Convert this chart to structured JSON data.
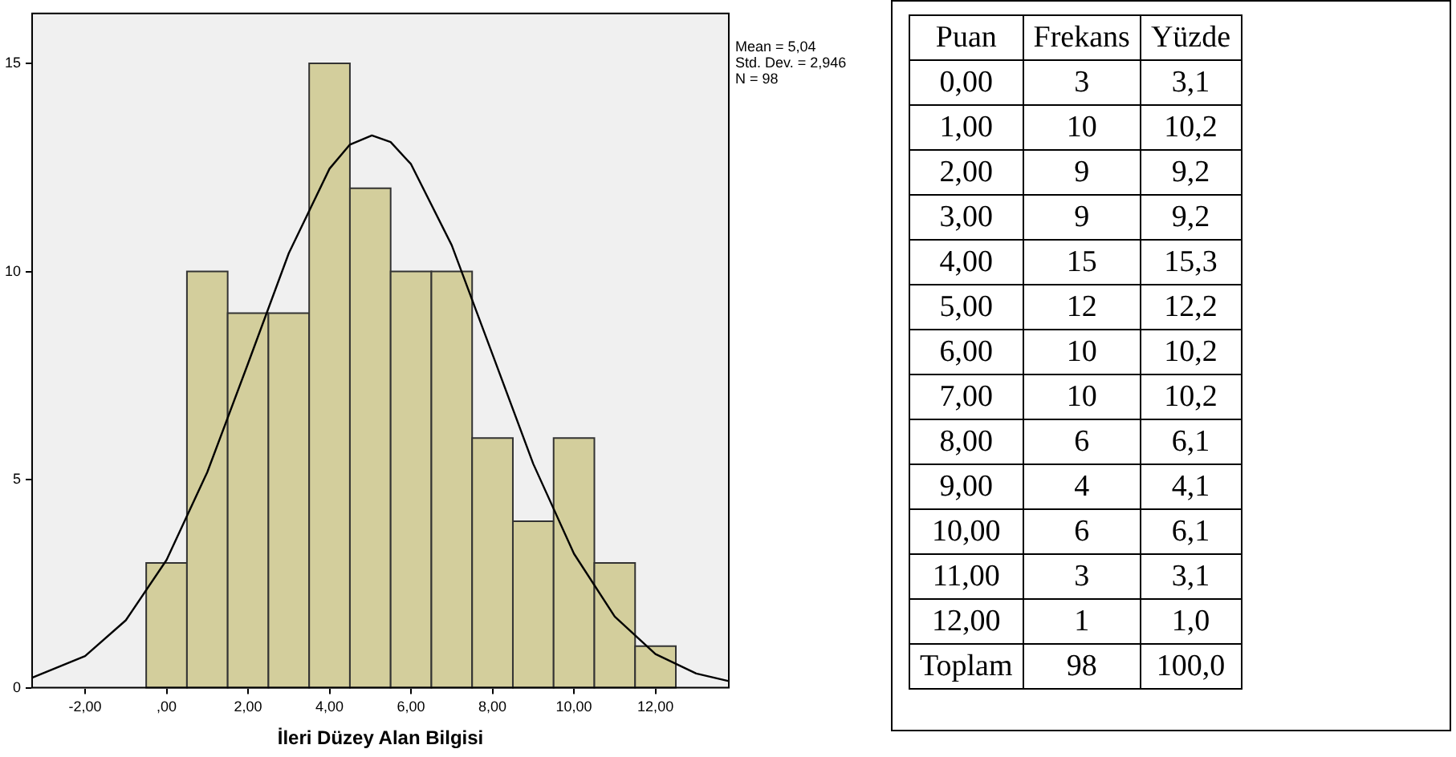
{
  "chart_data": {
    "type": "histogram",
    "xlabel": "İleri Düzey Alan Bilgisi",
    "bins": [
      -0.5,
      0.5,
      1.5,
      2.5,
      3.5,
      4.5,
      5.5,
      6.5,
      7.5,
      8.5,
      9.5,
      10.5,
      11.5,
      12.5
    ],
    "values": [
      3,
      10,
      9,
      9,
      15,
      12,
      10,
      10,
      6,
      4,
      6,
      3,
      1
    ],
    "color": "#d3ce9c",
    "series": [
      {
        "type": "line",
        "color": "#000000",
        "x": [
          -3.3,
          -2,
          -1,
          0,
          1,
          2,
          3,
          4,
          4.5,
          5.04,
          5.5,
          6,
          7,
          8,
          9,
          10,
          11,
          12,
          13,
          13.8
        ],
        "values": [
          0.24,
          0.76,
          1.62,
          3.07,
          5.18,
          7.79,
          10.44,
          12.47,
          13.05,
          13.27,
          13.11,
          12.58,
          10.63,
          8.01,
          5.38,
          3.22,
          1.71,
          0.81,
          0.34,
          0.16
        ]
      }
    ],
    "xlim": [
      -3.3,
      13.8
    ],
    "ylim": [
      0,
      16.2
    ],
    "xticks": [
      {
        "value": -2,
        "label": "-2,00"
      },
      {
        "value": 0,
        "label": ",00"
      },
      {
        "value": 2,
        "label": "2,00"
      },
      {
        "value": 4,
        "label": "4,00"
      },
      {
        "value": 6,
        "label": "6,00"
      },
      {
        "value": 8,
        "label": "8,00"
      },
      {
        "value": 10,
        "label": "10,00"
      },
      {
        "value": 12,
        "label": "12,00"
      }
    ],
    "yticks": [
      0,
      5,
      10,
      15
    ],
    "grid": false,
    "legend": false,
    "annotations": [
      "Mean = 5,04",
      "Std. Dev. = 2,946",
      "N = 98",
      "Puan",
      "Frekans",
      "Yüzde",
      "0,00",
      "3",
      "3,1",
      "1,00",
      "10",
      "10,2",
      "2,00",
      "9",
      "9,2",
      "3,00",
      "9",
      "9,2",
      "4,00",
      "15",
      "15,3",
      "5,00",
      "12",
      "12,2",
      "6,00",
      "10",
      "10,2",
      "7,00",
      "10",
      "10,2",
      "8,00",
      "6",
      "6,1",
      "9,00",
      "4",
      "4,1",
      "10,00",
      "6",
      "6,1",
      "11,00",
      "3",
      "3,1",
      "12,00",
      "1",
      "1,0",
      "Toplam",
      "98",
      "100,0"
    ]
  }
}
